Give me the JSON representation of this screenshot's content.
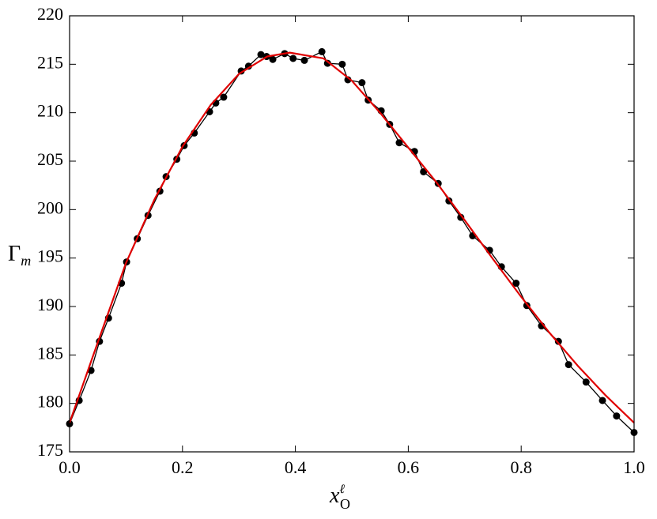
{
  "chart_data": {
    "type": "line",
    "xlabel": {
      "base": "x",
      "sup": "ℓ",
      "sub": "O"
    },
    "ylabel": {
      "base": "Γ",
      "sub": "m"
    },
    "xlim": [
      0,
      1
    ],
    "ylim": [
      175,
      220
    ],
    "xticks": [
      {
        "value": 0,
        "label": "0.0"
      },
      0.2,
      0.4,
      0.6,
      0.8,
      {
        "value": 1,
        "label": "1.0"
      }
    ],
    "yticks": [
      175,
      180,
      185,
      190,
      195,
      200,
      205,
      210,
      215,
      220
    ],
    "series": [
      {
        "color": "#000000",
        "marker": true,
        "x": [
          0.0,
          0.017,
          0.038,
          0.053,
          0.069,
          0.092,
          0.101,
          0.12,
          0.139,
          0.16,
          0.171,
          0.19,
          0.203,
          0.221,
          0.248,
          0.259,
          0.273,
          0.304,
          0.317,
          0.339,
          0.349,
          0.36,
          0.381,
          0.396,
          0.416,
          0.447,
          0.457,
          0.483,
          0.493,
          0.518,
          0.529,
          0.552,
          0.567,
          0.584,
          0.611,
          0.627,
          0.653,
          0.672,
          0.693,
          0.714,
          0.744,
          0.765,
          0.791,
          0.81,
          0.836,
          0.866,
          0.884,
          0.915,
          0.944,
          0.969,
          1.0
        ],
        "values": [
          177.9,
          180.3,
          183.4,
          186.4,
          188.8,
          192.4,
          194.6,
          197.0,
          199.4,
          201.9,
          203.4,
          205.2,
          206.6,
          207.9,
          210.1,
          211.0,
          211.6,
          214.3,
          214.8,
          216.0,
          215.8,
          215.5,
          216.1,
          215.6,
          215.4,
          216.3,
          215.1,
          215.0,
          213.4,
          213.1,
          211.3,
          210.2,
          208.8,
          206.9,
          206.0,
          203.9,
          202.7,
          200.9,
          199.2,
          197.3,
          195.8,
          194.1,
          192.4,
          190.1,
          188.0,
          186.4,
          184.0,
          182.2,
          180.3,
          178.7,
          177.0
        ]
      },
      {
        "color": "#e00000",
        "marker": false,
        "x": [
          0.0,
          0.05,
          0.1,
          0.15,
          0.2,
          0.25,
          0.3,
          0.35,
          0.39,
          0.45,
          0.5,
          0.55,
          0.6,
          0.65,
          0.7,
          0.75,
          0.8,
          0.85,
          0.9,
          0.95,
          1.0
        ],
        "values": [
          178.0,
          186.3,
          194.5,
          201.0,
          206.5,
          210.8,
          214.0,
          215.8,
          216.2,
          215.6,
          213.3,
          210.0,
          206.4,
          202.8,
          198.9,
          194.9,
          191.0,
          187.3,
          183.9,
          180.8,
          178.0
        ]
      }
    ]
  }
}
